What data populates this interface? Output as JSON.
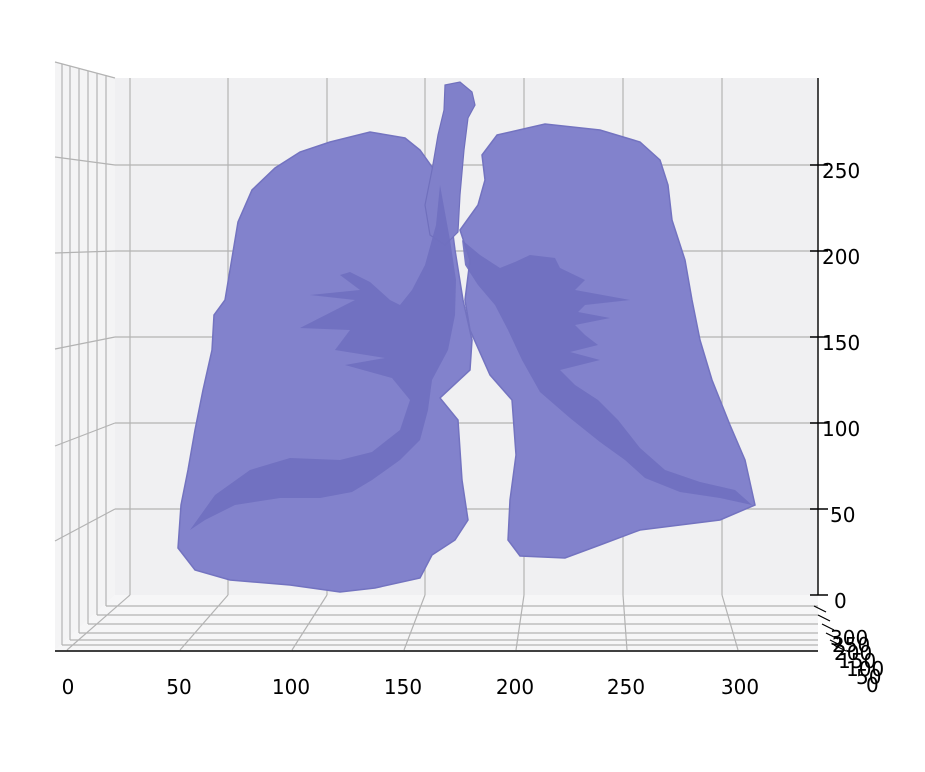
{
  "figure": {
    "background": "#ffffff",
    "pane_color": "#f0f0f2",
    "grid_color": "#b0b0b0",
    "axis_color": "#000000",
    "surface_color": "#7b7bc8",
    "surface_edge_color": "#6e6ebe",
    "airway_color": "#6c6cba"
  },
  "axes": {
    "x_ticks": [
      "0",
      "50",
      "100",
      "150",
      "200",
      "250",
      "300"
    ],
    "z_ticks": [
      "0",
      "50",
      "100",
      "150",
      "200",
      "250"
    ],
    "y_ticks": [
      "0",
      "50",
      "100",
      "150",
      "200",
      "250",
      "300"
    ]
  }
}
